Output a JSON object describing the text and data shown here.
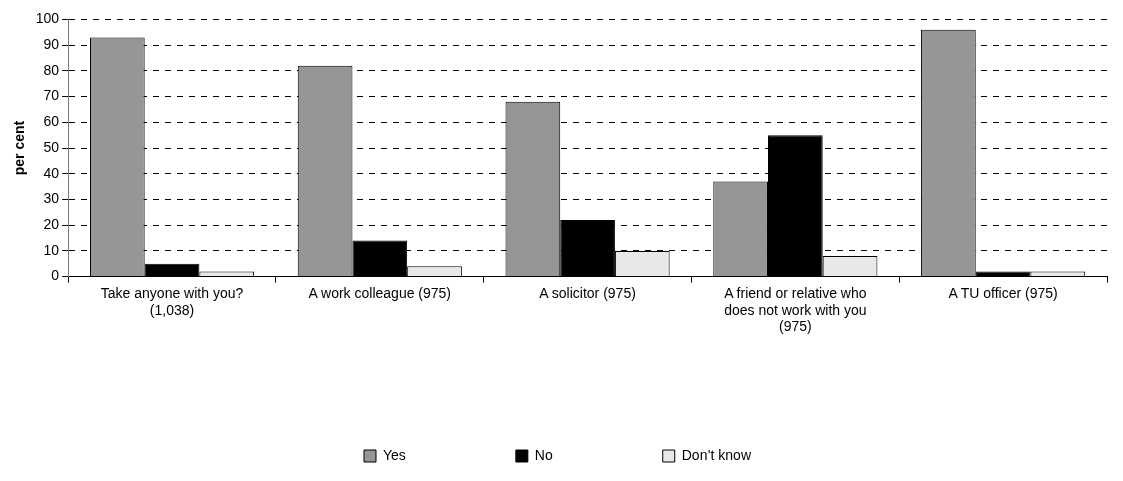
{
  "chart_data": {
    "type": "bar",
    "ylabel": "per cent",
    "categories": [
      "Take anyone with you? (1,038)",
      "A work colleague (975)",
      "A solicitor (975)",
      "A friend or relative who does not work with you (975)",
      "A TU officer (975)"
    ],
    "series": [
      {
        "name": "Yes",
        "color": "#969696",
        "values": [
          93,
          82,
          68,
          37,
          96
        ]
      },
      {
        "name": "No",
        "color": "#000000",
        "values": [
          5,
          14,
          22,
          55,
          2
        ]
      },
      {
        "name": "Don’t know",
        "color": "#e8e8e8",
        "values": [
          2,
          4,
          10,
          8,
          2
        ]
      }
    ],
    "ylim": [
      0,
      100
    ],
    "yticks": [
      0,
      10,
      20,
      30,
      40,
      50,
      60,
      70,
      80,
      90,
      100
    ],
    "grid": "y",
    "legend": "bottom"
  }
}
